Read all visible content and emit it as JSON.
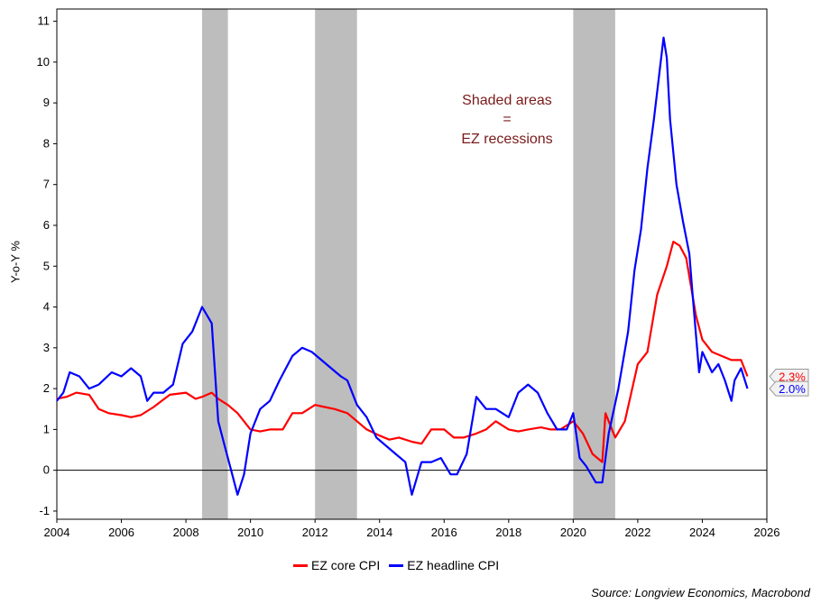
{
  "chart_data": {
    "type": "line",
    "title": "",
    "ylabel": "Y-o-Y %",
    "xlabel": "",
    "xlim": [
      2004,
      2026
    ],
    "ylim": [
      -1.2,
      11.3
    ],
    "xticks": [
      "2004",
      "2006",
      "2008",
      "2010",
      "2012",
      "2014",
      "2016",
      "2018",
      "2020",
      "2022",
      "2024",
      "2026"
    ],
    "yticks": [
      "-1",
      "0",
      "1",
      "2",
      "3",
      "4",
      "5",
      "6",
      "7",
      "8",
      "9",
      "10",
      "11"
    ],
    "recessions": [
      [
        2008.5,
        2009.3
      ],
      [
        2012.0,
        2013.3
      ],
      [
        2020.0,
        2021.3
      ]
    ],
    "annotation": [
      "Shaded areas",
      "=",
      "EZ recessions"
    ],
    "series": [
      {
        "name": "EZ core CPI",
        "color": "#ff0000",
        "end_label": "2.3%",
        "points": [
          [
            2004.0,
            1.75
          ],
          [
            2004.3,
            1.8
          ],
          [
            2004.6,
            1.9
          ],
          [
            2005.0,
            1.85
          ],
          [
            2005.3,
            1.5
          ],
          [
            2005.6,
            1.4
          ],
          [
            2006.0,
            1.35
          ],
          [
            2006.3,
            1.3
          ],
          [
            2006.6,
            1.35
          ],
          [
            2007.0,
            1.55
          ],
          [
            2007.5,
            1.85
          ],
          [
            2008.0,
            1.9
          ],
          [
            2008.3,
            1.75
          ],
          [
            2008.5,
            1.8
          ],
          [
            2008.8,
            1.9
          ],
          [
            2009.0,
            1.75
          ],
          [
            2009.3,
            1.6
          ],
          [
            2009.6,
            1.4
          ],
          [
            2010.0,
            1.0
          ],
          [
            2010.3,
            0.95
          ],
          [
            2010.6,
            1.0
          ],
          [
            2011.0,
            1.0
          ],
          [
            2011.3,
            1.4
          ],
          [
            2011.6,
            1.4
          ],
          [
            2012.0,
            1.6
          ],
          [
            2012.3,
            1.55
          ],
          [
            2012.6,
            1.5
          ],
          [
            2013.0,
            1.4
          ],
          [
            2013.3,
            1.2
          ],
          [
            2013.6,
            1.0
          ],
          [
            2014.0,
            0.85
          ],
          [
            2014.3,
            0.75
          ],
          [
            2014.6,
            0.8
          ],
          [
            2015.0,
            0.7
          ],
          [
            2015.3,
            0.65
          ],
          [
            2015.6,
            1.0
          ],
          [
            2016.0,
            1.0
          ],
          [
            2016.3,
            0.8
          ],
          [
            2016.6,
            0.8
          ],
          [
            2017.0,
            0.9
          ],
          [
            2017.3,
            1.0
          ],
          [
            2017.6,
            1.2
          ],
          [
            2018.0,
            1.0
          ],
          [
            2018.3,
            0.95
          ],
          [
            2018.6,
            1.0
          ],
          [
            2019.0,
            1.05
          ],
          [
            2019.3,
            1.0
          ],
          [
            2019.6,
            1.0
          ],
          [
            2020.0,
            1.2
          ],
          [
            2020.3,
            0.9
          ],
          [
            2020.6,
            0.4
          ],
          [
            2020.9,
            0.2
          ],
          [
            2021.0,
            1.4
          ],
          [
            2021.3,
            0.8
          ],
          [
            2021.6,
            1.2
          ],
          [
            2022.0,
            2.6
          ],
          [
            2022.3,
            2.9
          ],
          [
            2022.6,
            4.3
          ],
          [
            2022.9,
            5.0
          ],
          [
            2023.1,
            5.6
          ],
          [
            2023.3,
            5.5
          ],
          [
            2023.5,
            5.2
          ],
          [
            2023.8,
            3.8
          ],
          [
            2024.0,
            3.2
          ],
          [
            2024.3,
            2.9
          ],
          [
            2024.6,
            2.8
          ],
          [
            2024.9,
            2.7
          ],
          [
            2025.2,
            2.7
          ],
          [
            2025.4,
            2.3
          ]
        ]
      },
      {
        "name": "EZ headline CPI",
        "color": "#0000ff",
        "end_label": "2.0%",
        "points": [
          [
            2004.0,
            1.7
          ],
          [
            2004.2,
            1.9
          ],
          [
            2004.4,
            2.4
          ],
          [
            2004.7,
            2.3
          ],
          [
            2005.0,
            2.0
          ],
          [
            2005.3,
            2.1
          ],
          [
            2005.7,
            2.4
          ],
          [
            2006.0,
            2.3
          ],
          [
            2006.3,
            2.5
          ],
          [
            2006.6,
            2.3
          ],
          [
            2006.8,
            1.7
          ],
          [
            2007.0,
            1.9
          ],
          [
            2007.3,
            1.9
          ],
          [
            2007.6,
            2.1
          ],
          [
            2007.9,
            3.1
          ],
          [
            2008.2,
            3.4
          ],
          [
            2008.5,
            4.0
          ],
          [
            2008.8,
            3.6
          ],
          [
            2009.0,
            1.2
          ],
          [
            2009.2,
            0.6
          ],
          [
            2009.4,
            0.0
          ],
          [
            2009.6,
            -0.6
          ],
          [
            2009.8,
            -0.1
          ],
          [
            2010.0,
            0.9
          ],
          [
            2010.3,
            1.5
          ],
          [
            2010.6,
            1.7
          ],
          [
            2010.9,
            2.2
          ],
          [
            2011.3,
            2.8
          ],
          [
            2011.6,
            3.0
          ],
          [
            2011.9,
            2.9
          ],
          [
            2012.2,
            2.7
          ],
          [
            2012.5,
            2.5
          ],
          [
            2012.8,
            2.3
          ],
          [
            2013.0,
            2.2
          ],
          [
            2013.3,
            1.6
          ],
          [
            2013.6,
            1.3
          ],
          [
            2013.9,
            0.8
          ],
          [
            2014.2,
            0.6
          ],
          [
            2014.5,
            0.4
          ],
          [
            2014.8,
            0.2
          ],
          [
            2015.0,
            -0.6
          ],
          [
            2015.3,
            0.2
          ],
          [
            2015.6,
            0.2
          ],
          [
            2015.9,
            0.3
          ],
          [
            2016.2,
            -0.1
          ],
          [
            2016.4,
            -0.1
          ],
          [
            2016.7,
            0.4
          ],
          [
            2017.0,
            1.8
          ],
          [
            2017.3,
            1.5
          ],
          [
            2017.6,
            1.5
          ],
          [
            2018.0,
            1.3
          ],
          [
            2018.3,
            1.9
          ],
          [
            2018.6,
            2.1
          ],
          [
            2018.9,
            1.9
          ],
          [
            2019.2,
            1.4
          ],
          [
            2019.5,
            1.0
          ],
          [
            2019.8,
            1.0
          ],
          [
            2020.0,
            1.4
          ],
          [
            2020.2,
            0.3
          ],
          [
            2020.4,
            0.1
          ],
          [
            2020.7,
            -0.3
          ],
          [
            2020.9,
            -0.3
          ],
          [
            2021.1,
            0.9
          ],
          [
            2021.4,
            2.0
          ],
          [
            2021.7,
            3.4
          ],
          [
            2021.9,
            4.9
          ],
          [
            2022.1,
            5.9
          ],
          [
            2022.3,
            7.4
          ],
          [
            2022.5,
            8.6
          ],
          [
            2022.8,
            10.6
          ],
          [
            2022.9,
            10.1
          ],
          [
            2023.0,
            8.6
          ],
          [
            2023.2,
            7.0
          ],
          [
            2023.4,
            6.1
          ],
          [
            2023.6,
            5.3
          ],
          [
            2023.7,
            4.3
          ],
          [
            2023.9,
            2.4
          ],
          [
            2024.0,
            2.9
          ],
          [
            2024.3,
            2.4
          ],
          [
            2024.5,
            2.6
          ],
          [
            2024.7,
            2.2
          ],
          [
            2024.9,
            1.7
          ],
          [
            2025.0,
            2.2
          ],
          [
            2025.2,
            2.5
          ],
          [
            2025.4,
            2.0
          ]
        ]
      }
    ],
    "source": "Source: Longview Economics, Macrobond"
  }
}
